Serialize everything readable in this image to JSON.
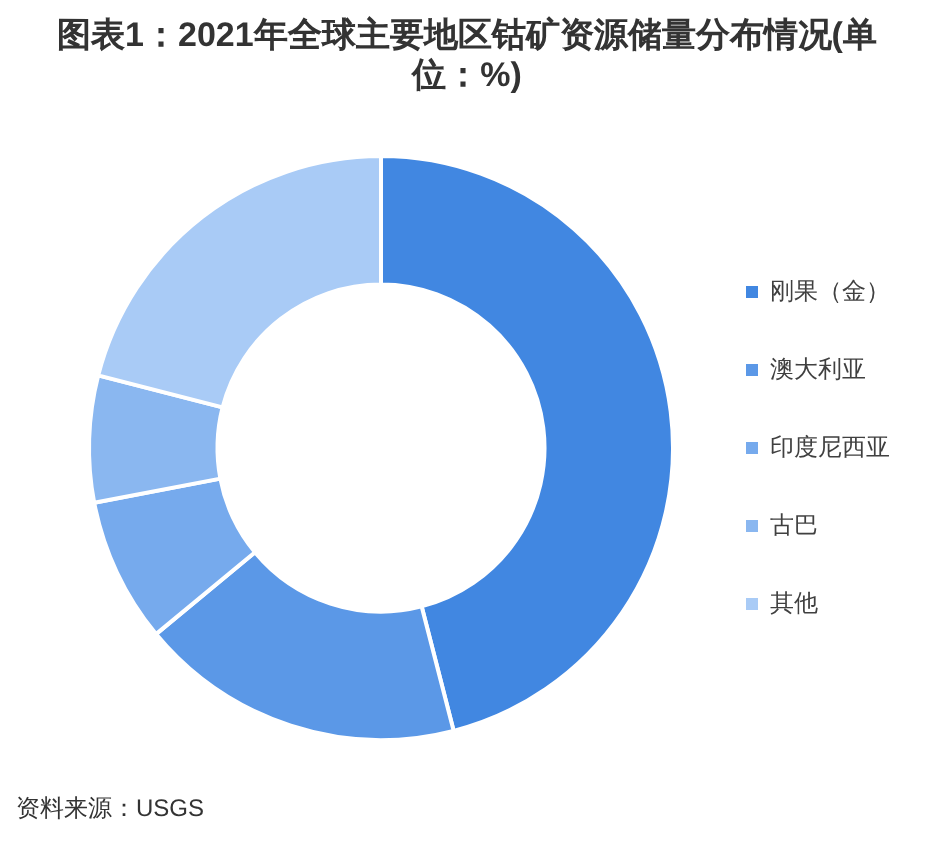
{
  "chart_data": {
    "type": "donut",
    "title": "图表1：2021年全球主要地区钴矿资源储量分布情况(单位：%)",
    "categories": [
      "刚果（金）",
      "澳大利亚",
      "印度尼西亚",
      "古巴",
      "其他"
    ],
    "values": [
      46,
      18,
      8,
      7,
      21
    ],
    "colors": [
      "#4187e1",
      "#5b98e7",
      "#76aaed",
      "#8ab7f0",
      "#a9cbf6"
    ],
    "legend": "right",
    "annotations": [
      "资料来源：USGS"
    ]
  }
}
